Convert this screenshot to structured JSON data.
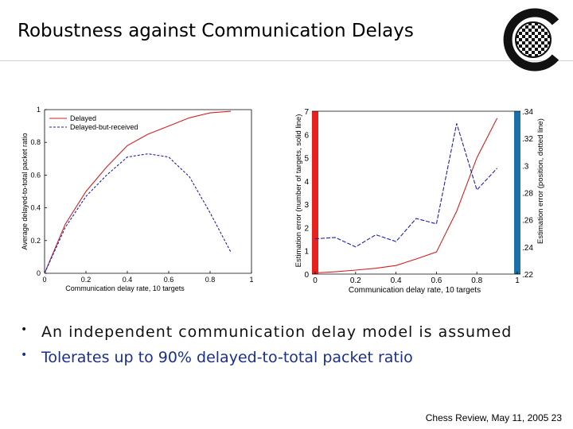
{
  "slide": {
    "title": "Robustness against Communication Delays",
    "bullets": [
      "An independent communication delay model is assumed",
      "Tolerates up to 90% delayed-to-total packet ratio"
    ],
    "footer": "Chess Review, May 11, 2005",
    "page_number": "23"
  },
  "colors": {
    "delayed": "#d42020",
    "delayed_but_received": "#1f1fb0",
    "left_axis_bar": "#e8201e",
    "right_axis_bar": "#1c70a8",
    "bullet2_text": "#1b2f8a"
  },
  "chart_data": [
    {
      "type": "line",
      "xlabel": "Communication delay rate, 10 targets",
      "ylabel": "Average delayed-to-total packet ratio",
      "xlim": [
        0,
        1
      ],
      "ylim": [
        0,
        1
      ],
      "xticks": [
        "0",
        "0.2",
        "0.4",
        "0.6",
        "0.8",
        "1"
      ],
      "yticks": [
        "0",
        "0.2",
        "0.4",
        "0.6",
        "0.8",
        "1"
      ],
      "legend_position": "top-left",
      "series": [
        {
          "name": "Delayed",
          "style": "solid",
          "x": [
            0,
            0.1,
            0.2,
            0.3,
            0.4,
            0.5,
            0.6,
            0.7,
            0.8,
            0.9
          ],
          "y": [
            0,
            0.3,
            0.5,
            0.65,
            0.78,
            0.85,
            0.9,
            0.95,
            0.98,
            0.99
          ]
        },
        {
          "name": "Delayed-but-received",
          "style": "dashed",
          "x": [
            0,
            0.1,
            0.2,
            0.3,
            0.4,
            0.5,
            0.6,
            0.7,
            0.8,
            0.9
          ],
          "y": [
            0,
            0.28,
            0.47,
            0.6,
            0.71,
            0.73,
            0.71,
            0.59,
            0.37,
            0.13
          ]
        }
      ]
    },
    {
      "type": "line",
      "xlabel": "Communication delay rate, 10 targets",
      "ylabel": "Estimation error (number of targets, solid line)",
      "ylabel_right": "Estimation error (position, dotted line)",
      "xlim": [
        0,
        1
      ],
      "ylim": [
        0,
        7
      ],
      "ylim_right": [
        0.22,
        0.34
      ],
      "xticks": [
        "0",
        "0.2",
        "0.4",
        "0.6",
        "0.8",
        "1"
      ],
      "yticks": [
        "0",
        "1",
        "2",
        "3",
        "4",
        "5",
        "6",
        "7"
      ],
      "yticks_right": [
        ".22",
        ".24",
        ".26",
        ".28",
        ".3",
        ".32",
        ".34"
      ],
      "series": [
        {
          "style": "solid",
          "axis": "left",
          "x": [
            0,
            0.1,
            0.2,
            0.3,
            0.4,
            0.5,
            0.6,
            0.7,
            0.8,
            0.9
          ],
          "y": [
            0.05,
            0.1,
            0.17,
            0.25,
            0.37,
            0.65,
            0.95,
            2.7,
            5.0,
            6.7
          ]
        },
        {
          "style": "dashed",
          "axis": "right",
          "x": [
            0,
            0.1,
            0.2,
            0.3,
            0.4,
            0.5,
            0.6,
            0.7,
            0.8,
            0.9
          ],
          "y": [
            0.246,
            0.247,
            0.24,
            0.249,
            0.244,
            0.261,
            0.257,
            0.331,
            0.282,
            0.298
          ]
        }
      ]
    }
  ]
}
